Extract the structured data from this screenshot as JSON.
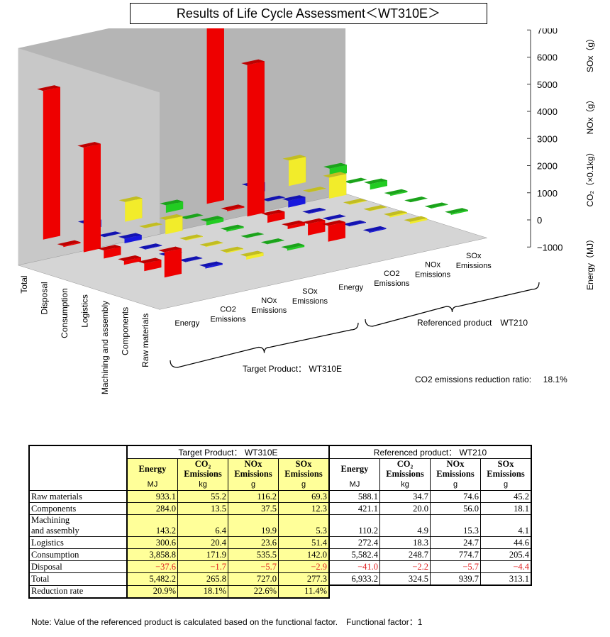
{
  "title": "Results of Life Cycle Assessment＜WT310E＞",
  "chart_data": {
    "type": "bar3d",
    "zlim": [
      -1000,
      7000
    ],
    "zticks": [
      "7000",
      "6000",
      "5000",
      "4000",
      "3000",
      "2000",
      "1000",
      "0",
      "−1000"
    ],
    "axis_units": [
      "Energy（MJ）",
      "CO₂（×0.1kg）",
      "NOx（g）",
      "SOx（g）"
    ],
    "stages": [
      "Raw materials",
      "Components",
      "Machining and assembly",
      "Logistics",
      "Consumption",
      "Disposal",
      "Total"
    ],
    "groups": [
      {
        "label": "Target Product： WT310E",
        "metrics": [
          "Energy",
          "CO2 Emissions",
          "NOx Emissions",
          "SOx Emissions"
        ]
      },
      {
        "label": "Referenced product　WT210",
        "metrics": [
          "Energy",
          "CO2 Emissions",
          "NOx Emissions",
          "SOx Emissions"
        ]
      }
    ],
    "colors": {
      "Energy": "#ee0000",
      "CO2": "#1818dd",
      "NOx": "#f2ec2a",
      "SOx": "#22cc22",
      "wall": "#b5b5b5",
      "floor": "#d5d5d5"
    },
    "series": [
      {
        "name": "Target Energy",
        "values": [
          933.1,
          284.0,
          143.2,
          300.6,
          3858.8,
          -37.6,
          5482.2
        ]
      },
      {
        "name": "Target CO2",
        "values": [
          55.2,
          13.5,
          6.4,
          20.4,
          171.9,
          -1.7,
          265.8
        ]
      },
      {
        "name": "Target NOx",
        "values": [
          116.2,
          37.5,
          19.9,
          23.6,
          535.5,
          -5.7,
          727.0
        ]
      },
      {
        "name": "Target SOx",
        "values": [
          69.3,
          12.3,
          5.3,
          51.4,
          142.0,
          -2.9,
          277.3
        ]
      },
      {
        "name": "Ref Energy",
        "values": [
          588.1,
          421.1,
          110.2,
          272.4,
          5582.4,
          -41.0,
          6933.2
        ]
      },
      {
        "name": "Ref CO2",
        "values": [
          34.7,
          20.0,
          4.9,
          18.3,
          248.7,
          -2.2,
          324.5
        ]
      },
      {
        "name": "Ref NOx",
        "values": [
          74.6,
          56.0,
          15.3,
          24.7,
          774.7,
          -5.7,
          939.7
        ]
      },
      {
        "name": "Ref SOx",
        "values": [
          45.2,
          18.1,
          4.1,
          44.6,
          205.4,
          -4.4,
          313.1
        ]
      }
    ],
    "reduction_label": "CO2 emissions reduction ratio:",
    "reduction_value": "18.1%"
  },
  "table": {
    "target_header": "Target Product： WT310E",
    "ref_header": "Referenced product： WT210",
    "columns": [
      {
        "name": "Energy",
        "unit": "MJ"
      },
      {
        "name": "CO₂ Emissions",
        "unit": "kg"
      },
      {
        "name": "NOx Emissions",
        "unit": "g"
      },
      {
        "name": "SOx Emissions",
        "unit": "g"
      },
      {
        "name": "Energy",
        "unit": "MJ"
      },
      {
        "name": "CO₂ Emissions",
        "unit": "kg"
      },
      {
        "name": "NOx Emissions",
        "unit": "g"
      },
      {
        "name": "SOx Emissions",
        "unit": "g"
      }
    ],
    "rows": [
      {
        "label": "Raw materials",
        "values": [
          "933.1",
          "55.2",
          "116.2",
          "69.3",
          "588.1",
          "34.7",
          "74.6",
          "45.2"
        ]
      },
      {
        "label": "Components",
        "values": [
          "284.0",
          "13.5",
          "37.5",
          "12.3",
          "421.1",
          "20.0",
          "56.0",
          "18.1"
        ]
      },
      {
        "label": "Machining\nand assembly",
        "values": [
          "143.2",
          "6.4",
          "19.9",
          "5.3",
          "110.2",
          "4.9",
          "15.3",
          "4.1"
        ]
      },
      {
        "label": "Logistics",
        "values": [
          "300.6",
          "20.4",
          "23.6",
          "51.4",
          "272.4",
          "18.3",
          "24.7",
          "44.6"
        ]
      },
      {
        "label": "Consumption",
        "values": [
          "3,858.8",
          "171.9",
          "535.5",
          "142.0",
          "5,582.4",
          "248.7",
          "774.7",
          "205.4"
        ]
      },
      {
        "label": "Disposal",
        "values": [
          "−37.6",
          "−1.7",
          "−5.7",
          "−2.9",
          "−41.0",
          "−2.2",
          "−5.7",
          "−4.4"
        ]
      },
      {
        "label": "Total",
        "values": [
          "5,482.2",
          "265.8",
          "727.0",
          "277.3",
          "6,933.2",
          "324.5",
          "939.7",
          "313.1"
        ]
      },
      {
        "label": "Reduction rate",
        "values": [
          "20.9%",
          "18.1%",
          "22.6%",
          "11.4%"
        ]
      }
    ]
  },
  "note": "Note: Value of the referenced product is calculated based on the functional factor.　Functional factor：1"
}
